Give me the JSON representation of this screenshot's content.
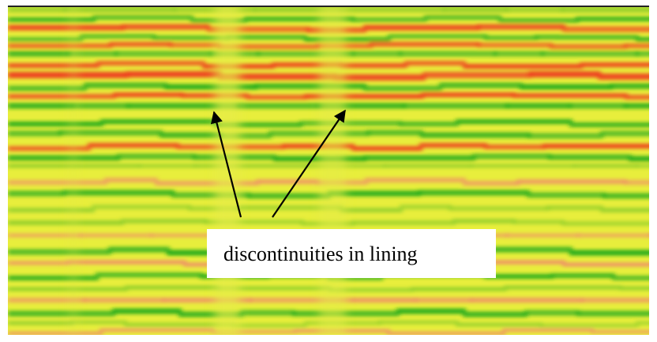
{
  "annotation": {
    "label": "discontinuities in lining"
  }
}
